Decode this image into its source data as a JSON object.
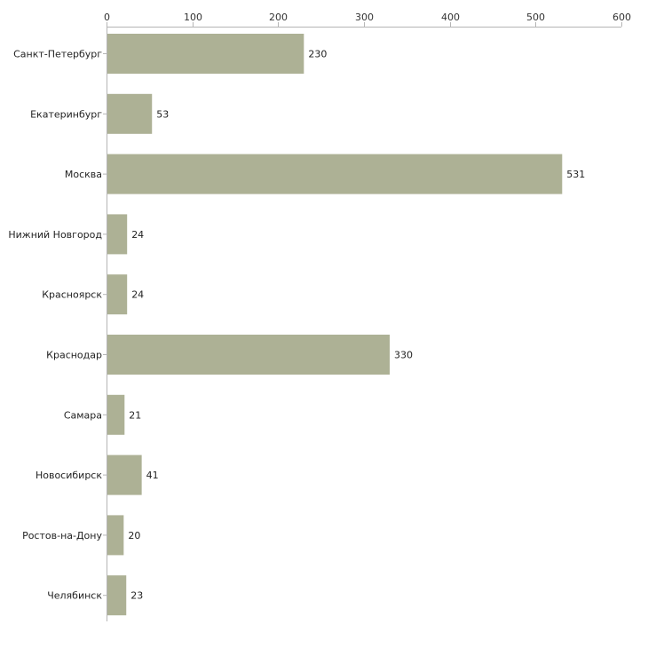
{
  "chart_data": {
    "type": "bar",
    "orientation": "horizontal",
    "title": "",
    "xlabel": "",
    "ylabel": "",
    "xlim": [
      0,
      600
    ],
    "x_ticks": [
      0,
      100,
      200,
      300,
      400,
      500,
      600
    ],
    "axis_position": "top",
    "grid": false,
    "bar_color": "#adb195",
    "categories": [
      "Санкт-Петербург",
      "Екатеринбург",
      "Москва",
      "Нижний Новгород",
      "Красноярск",
      "Краснодар",
      "Самара",
      "Новосибирск",
      "Ростов-на-Дону",
      "Челябинск"
    ],
    "values": [
      230,
      53,
      531,
      24,
      24,
      330,
      21,
      41,
      20,
      23
    ]
  }
}
